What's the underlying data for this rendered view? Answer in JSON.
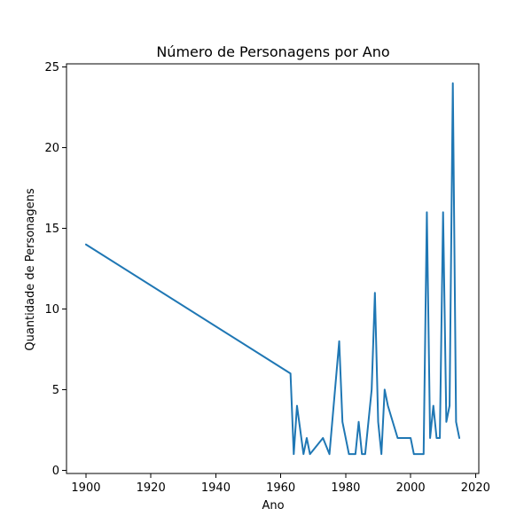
{
  "chart_data": {
    "type": "line",
    "title": "Número de Personagens por Ano",
    "xlabel": "Ano",
    "ylabel": "Quantidade de Personagens",
    "xlim": [
      1894,
      2021
    ],
    "ylim": [
      -0.2,
      25.2
    ],
    "x_ticks": [
      1900,
      1920,
      1940,
      1960,
      1980,
      2000,
      2020
    ],
    "y_ticks": [
      0,
      5,
      10,
      15,
      20,
      25
    ],
    "grid": false,
    "legend": false,
    "series": [
      {
        "color": "#1f77b4",
        "x": [
          1900,
          1963,
          1964,
          1965,
          1967,
          1968,
          1969,
          1973,
          1975,
          1978,
          1979,
          1981,
          1983,
          1984,
          1985,
          1986,
          1988,
          1989,
          1990,
          1991,
          1992,
          1993,
          1996,
          2000,
          2001,
          2004,
          2005,
          2006,
          2007,
          2008,
          2009,
          2010,
          2011,
          2012,
          2013,
          2014,
          2015
        ],
        "values": [
          14,
          6,
          1,
          4,
          1,
          2,
          1,
          2,
          1,
          8,
          3,
          1,
          1,
          3,
          1,
          1,
          5,
          11,
          3,
          1,
          5,
          4,
          2,
          2,
          1,
          1,
          16,
          2,
          4,
          2,
          2,
          16,
          3,
          4,
          24,
          3,
          2
        ]
      }
    ]
  }
}
